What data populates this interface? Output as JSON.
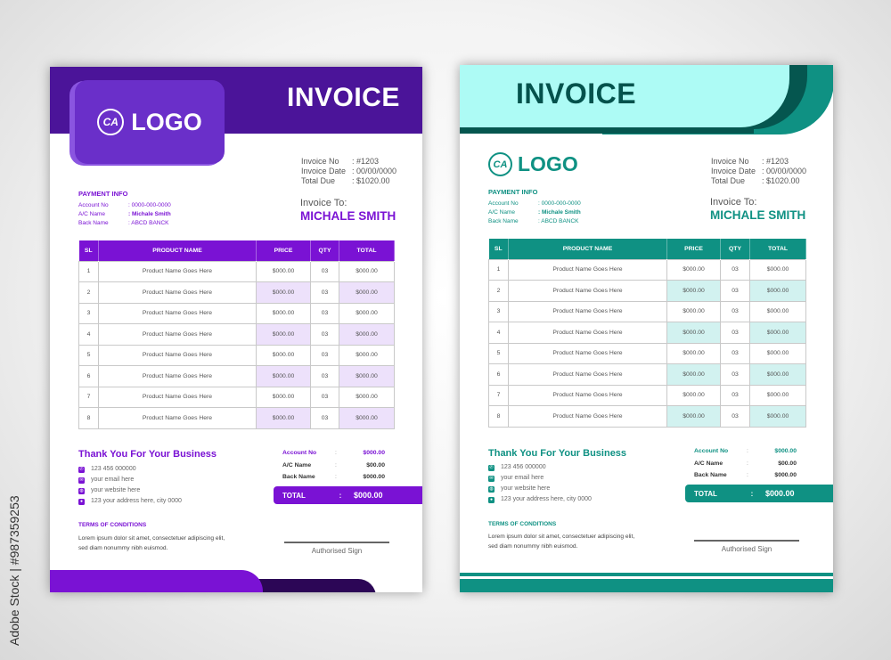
{
  "watermark_side_text": "Adobe Stock | #987359253",
  "invoices": [
    {
      "id": "inv-purple",
      "theme": {
        "primary": "#7a12d4",
        "dark": "#2c0656",
        "header": "#4b1499",
        "logo_box": "#6a2fc9",
        "shade": "#ede1fb",
        "title": "#ffffff"
      },
      "title": "INVOICE",
      "logo_text": "LOGO",
      "logo_mark": "CA",
      "invoice_info": [
        {
          "label": "Invoice No",
          "value": ": #1203"
        },
        {
          "label": "Invoice Date",
          "value": ": 00/00/0000"
        },
        {
          "label": "Total Due",
          "value": ": $1020.00"
        }
      ],
      "payment_info": {
        "title": "PAYMENT INFO",
        "rows": [
          {
            "label": "Account No",
            "value": ": 0000-000-0000"
          },
          {
            "label": "A/C Name",
            "value": ": Michale Smith"
          },
          {
            "label": "Back Name",
            "value": ": ABCD BANCK"
          }
        ]
      },
      "invoice_to": {
        "label": "Invoice To:",
        "name": "MICHALE SMITH"
      },
      "table": {
        "headers": [
          "SL",
          "PRODUCT NAME",
          "PRICE",
          "QTY",
          "TOTAL"
        ],
        "rows": [
          [
            "1",
            "Product Name Goes Here",
            "$000.00",
            "03",
            "$000.00"
          ],
          [
            "2",
            "Product Name Goes Here",
            "$000.00",
            "03",
            "$000.00"
          ],
          [
            "3",
            "Product Name Goes Here",
            "$000.00",
            "03",
            "$000.00"
          ],
          [
            "4",
            "Product Name Goes Here",
            "$000.00",
            "03",
            "$000.00"
          ],
          [
            "5",
            "Product Name Goes Here",
            "$000.00",
            "03",
            "$000.00"
          ],
          [
            "6",
            "Product Name Goes Here",
            "$000.00",
            "03",
            "$000.00"
          ],
          [
            "7",
            "Product Name Goes Here",
            "$000.00",
            "03",
            "$000.00"
          ],
          [
            "8",
            "Product Name Goes Here",
            "$000.00",
            "03",
            "$000.00"
          ]
        ]
      },
      "thanks": "Thank You For Your Business",
      "contacts": [
        {
          "icon": "phone-icon",
          "text": "123 456 000000"
        },
        {
          "icon": "email-icon",
          "text": "your email here"
        },
        {
          "icon": "globe-icon",
          "text": "your website here"
        },
        {
          "icon": "location-icon",
          "text": "123 your address here, city 0000"
        }
      ],
      "summary": [
        {
          "label": "Account No",
          "value": "$000.00"
        },
        {
          "label": "A/C Name",
          "value": "$00.00"
        },
        {
          "label": "Back Name",
          "value": "$000.00"
        }
      ],
      "total": {
        "label": "TOTAL",
        "value": "$000.00"
      },
      "terms": {
        "title": "TERMS OF CONDITIONS",
        "line1": "Lorem ipsum dolor sit amet, consectetuer adipiscing elit,",
        "line2": "sed diam nonummy nibh euismod."
      },
      "sign": "Authorised Sign"
    },
    {
      "id": "inv-teal",
      "theme": {
        "primary": "#0f9183",
        "dark": "#05564f",
        "header": "#adfbf5",
        "logo_box": "none",
        "shade": "#d2f2f0",
        "title": "#04524c"
      },
      "title": "INVOICE",
      "logo_text": "LOGO",
      "logo_mark": "CA",
      "invoice_info": [
        {
          "label": "Invoice No",
          "value": ": #1203"
        },
        {
          "label": "Invoice Date",
          "value": ": 00/00/0000"
        },
        {
          "label": "Total Due",
          "value": ": $1020.00"
        }
      ],
      "payment_info": {
        "title": "PAYMENT INFO",
        "rows": [
          {
            "label": "Account No",
            "value": ": 0000-000-0000"
          },
          {
            "label": "A/C Name",
            "value": ": Michale Smith"
          },
          {
            "label": "Back Name",
            "value": ": ABCD BANCK"
          }
        ]
      },
      "invoice_to": {
        "label": "Invoice To:",
        "name": "MICHALE SMITH"
      },
      "table": {
        "headers": [
          "SL",
          "PRODUCT NAME",
          "PRICE",
          "QTY",
          "TOTAL"
        ],
        "rows": [
          [
            "1",
            "Product Name Goes Here",
            "$000.00",
            "03",
            "$000.00"
          ],
          [
            "2",
            "Product Name Goes Here",
            "$000.00",
            "03",
            "$000.00"
          ],
          [
            "3",
            "Product Name Goes Here",
            "$000.00",
            "03",
            "$000.00"
          ],
          [
            "4",
            "Product Name Goes Here",
            "$000.00",
            "03",
            "$000.00"
          ],
          [
            "5",
            "Product Name Goes Here",
            "$000.00",
            "03",
            "$000.00"
          ],
          [
            "6",
            "Product Name Goes Here",
            "$000.00",
            "03",
            "$000.00"
          ],
          [
            "7",
            "Product Name Goes Here",
            "$000.00",
            "03",
            "$000.00"
          ],
          [
            "8",
            "Product Name Goes Here",
            "$000.00",
            "03",
            "$000.00"
          ]
        ]
      },
      "thanks": "Thank You For Your Business",
      "contacts": [
        {
          "icon": "phone-icon",
          "text": "123 456 000000"
        },
        {
          "icon": "email-icon",
          "text": "your email here"
        },
        {
          "icon": "globe-icon",
          "text": "your website here"
        },
        {
          "icon": "location-icon",
          "text": "123 your address here, city 0000"
        }
      ],
      "summary": [
        {
          "label": "Account No",
          "value": "$000.00"
        },
        {
          "label": "A/C Name",
          "value": "$00.00"
        },
        {
          "label": "Back Name",
          "value": "$000.00"
        }
      ],
      "total": {
        "label": "TOTAL",
        "value": "$000.00"
      },
      "terms": {
        "title": "TERMS OF CONDITIONS",
        "line1": "Lorem ipsum dolor sit amet, consectetuer adipiscing elit,",
        "line2": "sed diam nonummy nibh euismod."
      },
      "sign": "Authorised Sign"
    }
  ]
}
